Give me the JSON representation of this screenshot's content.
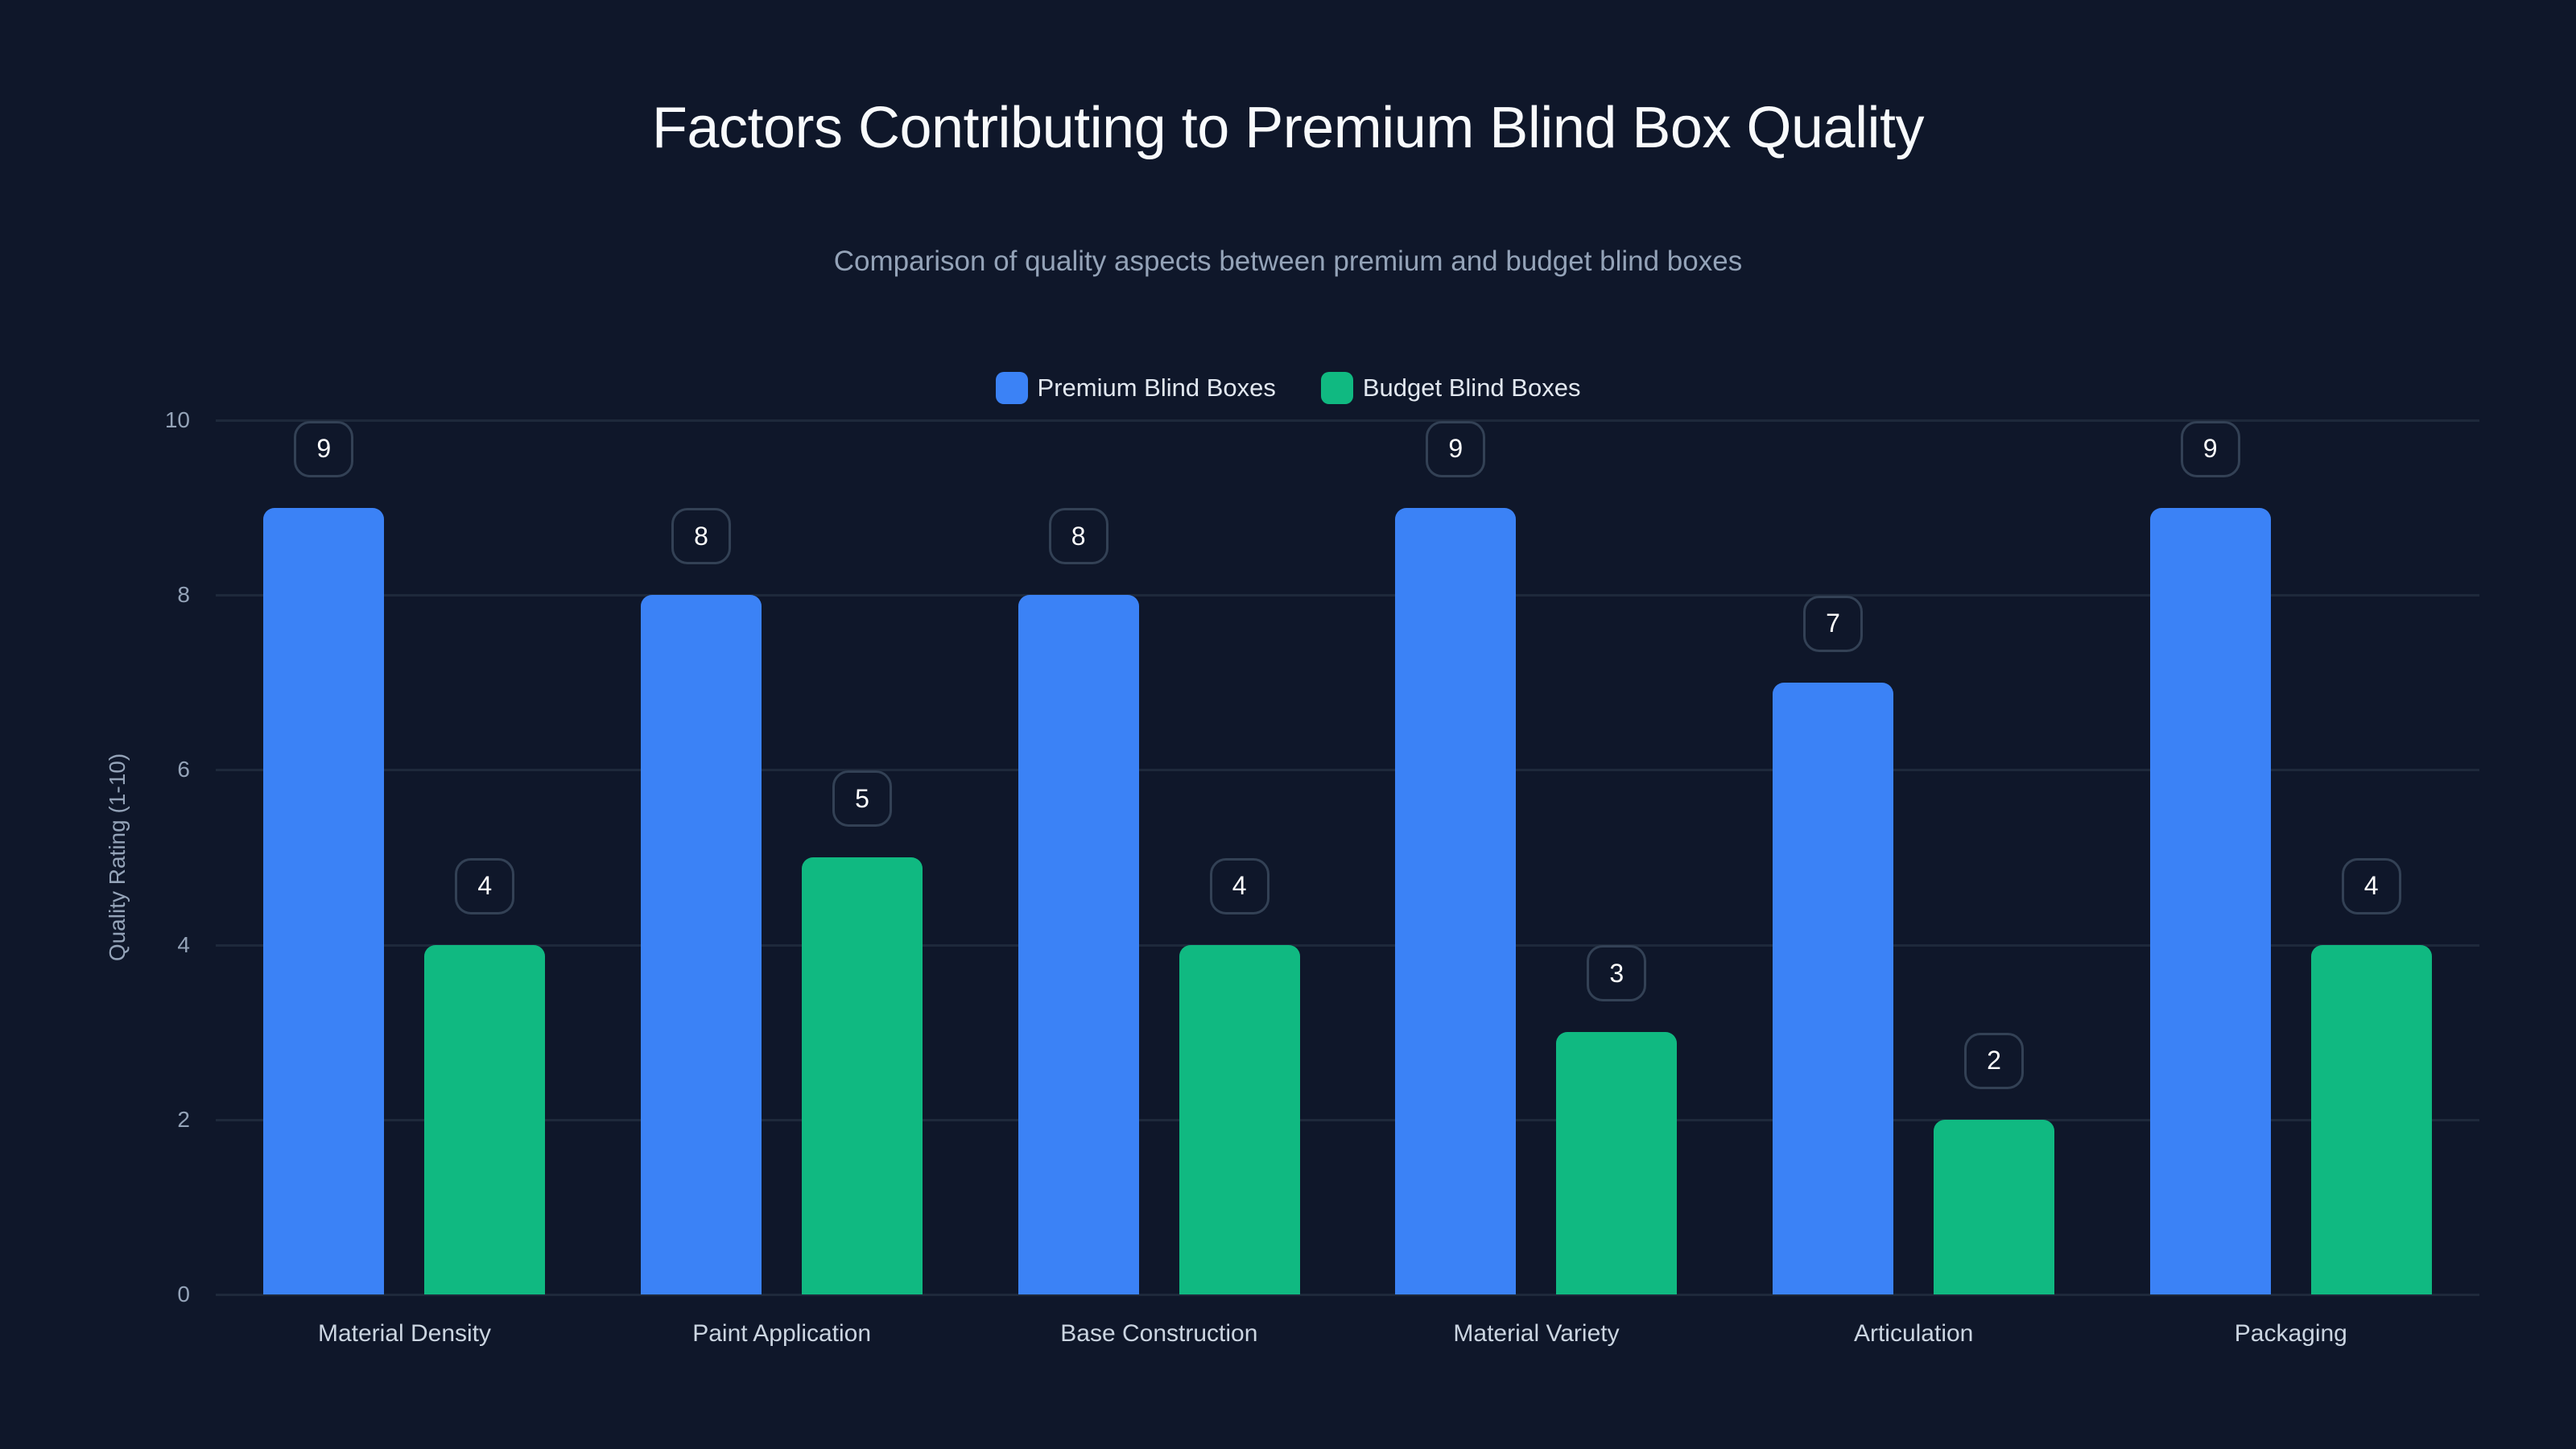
{
  "title": "Factors Contributing to Premium Blind Box Quality",
  "subtitle": "Comparison of quality aspects between premium and budget blind boxes",
  "legend": [
    {
      "label": "Premium Blind Boxes",
      "color": "#3b82f6"
    },
    {
      "label": "Budget Blind Boxes",
      "color": "#10b981"
    }
  ],
  "colors": {
    "background": "#0f172a",
    "grid": "#1e293b",
    "premium": "#3b82f6",
    "budget": "#10b981"
  },
  "yaxis": {
    "label": "Quality Rating (1-10)",
    "ticks": [
      "0",
      "2",
      "4",
      "6",
      "8",
      "10"
    ]
  },
  "chart_data": {
    "type": "bar",
    "title": "Factors Contributing to Premium Blind Box Quality",
    "subtitle": "Comparison of quality aspects between premium and budget blind boxes",
    "categories": [
      "Material Density",
      "Paint Application",
      "Base Construction",
      "Material Variety",
      "Articulation",
      "Packaging"
    ],
    "series": [
      {
        "name": "Premium Blind Boxes",
        "color": "#3b82f6",
        "values": [
          9,
          8,
          8,
          9,
          7,
          9
        ]
      },
      {
        "name": "Budget Blind Boxes",
        "color": "#10b981",
        "values": [
          4,
          5,
          4,
          3,
          2,
          4
        ]
      }
    ],
    "xlabel": "",
    "ylabel": "Quality Rating (1-10)",
    "ylim": [
      0,
      10
    ],
    "yticks": [
      0,
      2,
      4,
      6,
      8,
      10
    ],
    "grid": true,
    "legend_position": "top-center",
    "data_labels": true
  }
}
